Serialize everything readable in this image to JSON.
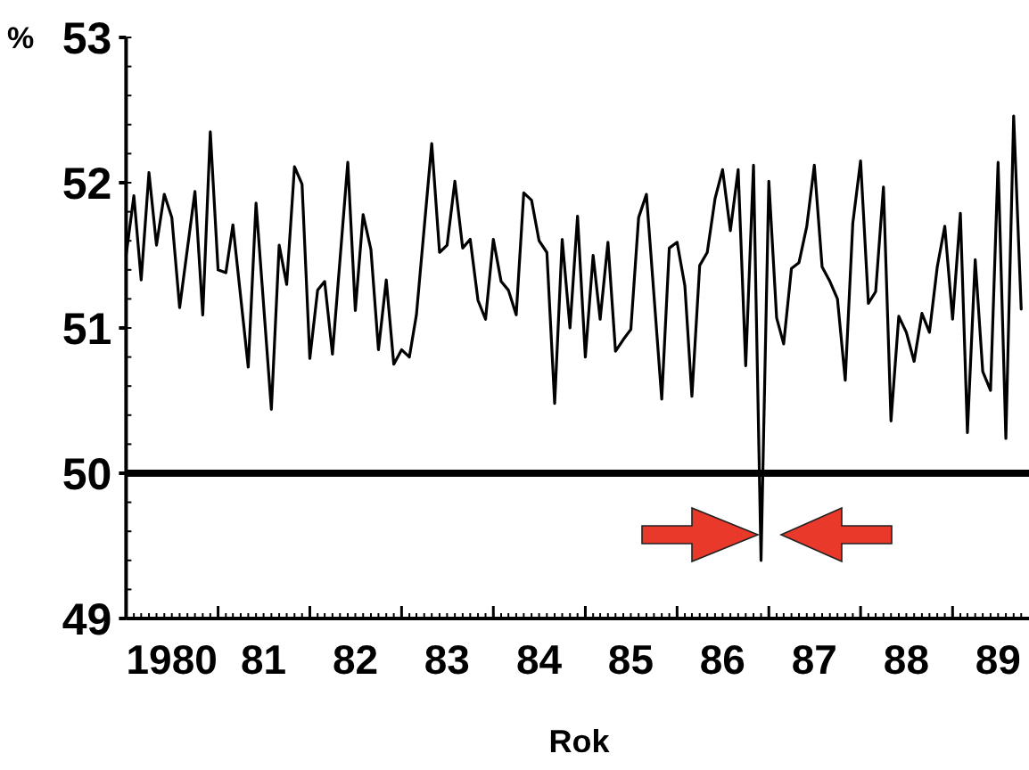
{
  "chart_data": {
    "type": "line",
    "xlabel": "Rok",
    "ylabel": "%",
    "xlim": [
      "1980-01",
      "1989-11"
    ],
    "ylim": [
      49,
      53
    ],
    "yticks": [
      49,
      50,
      51,
      52,
      53
    ],
    "xticks": [
      {
        "value": "1980-07",
        "label": "1980"
      },
      {
        "value": "1981",
        "label": null
      },
      {
        "value": "1981-07",
        "label": "81"
      },
      {
        "value": "1982",
        "label": null
      },
      {
        "value": "1982-07",
        "label": "82"
      },
      {
        "value": "1983",
        "label": null
      },
      {
        "value": "1983-07",
        "label": "83"
      },
      {
        "value": "1984",
        "label": null
      },
      {
        "value": "1984-07",
        "label": "84"
      },
      {
        "value": "1985",
        "label": null
      },
      {
        "value": "1985-07",
        "label": "85"
      },
      {
        "value": "1986",
        "label": null
      },
      {
        "value": "1986-07",
        "label": "86"
      },
      {
        "value": "1987",
        "label": null
      },
      {
        "value": "1987-07",
        "label": "87"
      },
      {
        "value": "1988",
        "label": null
      },
      {
        "value": "1988-07",
        "label": "88"
      },
      {
        "value": "1989",
        "label": null
      },
      {
        "value": "1989-07",
        "label": "89"
      }
    ],
    "ref_lines": [
      {
        "axis": "y",
        "value": 50,
        "color": "#000000"
      }
    ],
    "x": [
      "1980-01",
      "1980-02",
      "1980-03",
      "1980-04",
      "1980-05",
      "1980-06",
      "1980-07",
      "1980-08",
      "1980-10",
      "1980-11",
      "1980-12",
      "1981-01",
      "1981-02",
      "1981-03",
      "1981-05",
      "1981-06",
      "1981-08",
      "1981-09",
      "1981-10",
      "1981-11",
      "1981-12",
      "1982-01",
      "1982-02",
      "1982-03",
      "1982-04",
      "1982-06",
      "1982-07",
      "1982-08",
      "1982-09",
      "1982-10",
      "1982-11",
      "1982-12",
      "1983-01",
      "1983-02",
      "1983-03",
      "1983-05",
      "1983-06",
      "1983-07",
      "1983-08",
      "1983-09",
      "1983-10",
      "1983-11",
      "1983-12",
      "1984-01",
      "1984-02",
      "1984-03",
      "1984-04",
      "1984-05",
      "1984-06",
      "1984-07",
      "1984-08",
      "1984-09",
      "1984-10",
      "1984-11",
      "1984-12",
      "1985-01",
      "1985-02",
      "1985-03",
      "1985-04",
      "1985-05",
      "1985-06",
      "1985-07",
      "1985-08",
      "1985-09",
      "1985-11",
      "1985-12",
      "1986-01",
      "1986-02",
      "1986-03",
      "1986-04",
      "1986-05",
      "1986-06",
      "1986-07",
      "1986-08",
      "1986-09",
      "1986-10",
      "1986-11",
      "1986-12",
      "1987-01",
      "1987-02",
      "1987-03",
      "1987-04",
      "1987-05",
      "1987-06",
      "1987-07",
      "1987-08",
      "1987-09",
      "1987-10",
      "1987-11",
      "1987-12",
      "1988-01",
      "1988-02",
      "1988-03",
      "1988-04",
      "1988-05",
      "1988-06",
      "1988-07",
      "1988-08",
      "1988-09",
      "1988-10",
      "1988-11",
      "1988-12",
      "1989-01",
      "1989-02",
      "1989-03",
      "1989-04",
      "1989-05",
      "1989-06",
      "1989-07",
      "1989-08",
      "1989-09",
      "1989-10"
    ],
    "series": [
      {
        "color": "#000000",
        "values": [
          51.5,
          51.91,
          51.33,
          52.07,
          51.57,
          51.92,
          51.76,
          51.14,
          51.94,
          51.09,
          52.35,
          51.4,
          51.38,
          51.71,
          50.73,
          51.86,
          50.44,
          51.57,
          51.3,
          52.11,
          51.99,
          50.79,
          51.26,
          51.32,
          50.82,
          52.14,
          51.12,
          51.78,
          51.54,
          50.85,
          51.33,
          50.75,
          50.85,
          50.8,
          51.09,
          52.27,
          51.52,
          51.57,
          52.01,
          51.55,
          51.61,
          51.19,
          51.06,
          51.61,
          51.32,
          51.26,
          51.09,
          51.93,
          51.88,
          51.6,
          51.52,
          50.48,
          51.61,
          51.0,
          51.77,
          50.8,
          51.5,
          51.06,
          51.59,
          50.84,
          50.92,
          50.99,
          51.76,
          51.92,
          50.51,
          51.55,
          51.59,
          51.29,
          50.53,
          51.43,
          51.52,
          51.89,
          52.09,
          51.67,
          52.09,
          50.74,
          52.12,
          49.4,
          52.01,
          51.07,
          50.89,
          51.41,
          51.45,
          51.7,
          52.12,
          51.42,
          51.32,
          51.2,
          50.64,
          51.72,
          52.15,
          51.17,
          51.25,
          51.97,
          50.36,
          51.08,
          50.97,
          50.77,
          51.1,
          50.97,
          51.42,
          51.7,
          51.06,
          51.79,
          50.28,
          51.47,
          50.7,
          50.57,
          52.14,
          50.24,
          52.46,
          51.13
        ]
      }
    ]
  }
}
